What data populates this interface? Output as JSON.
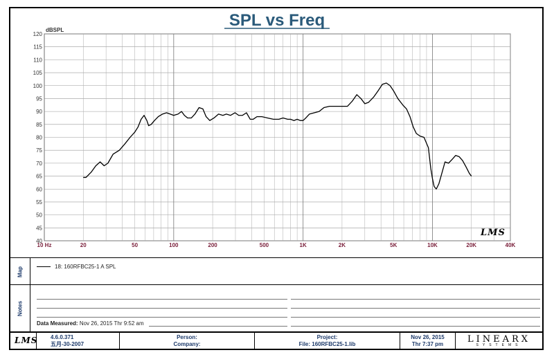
{
  "chart_data": {
    "type": "line",
    "title": "SPL vs Freq",
    "ylabel": "dBSPL",
    "x_scale": "log",
    "xlim": [
      10,
      40000
    ],
    "ylim": [
      40,
      120
    ],
    "grid": true,
    "y_ticks": [
      40,
      45,
      50,
      55,
      60,
      65,
      70,
      75,
      80,
      85,
      90,
      95,
      100,
      105,
      110,
      115,
      120
    ],
    "x_tick_values": [
      10,
      20,
      50,
      100,
      200,
      500,
      1000,
      2000,
      5000,
      10000,
      20000,
      40000
    ],
    "x_tick_labels": [
      "10 Hz",
      "20",
      "50",
      "100",
      "200",
      "500",
      "1K",
      "2K",
      "5K",
      "10K",
      "20K",
      "40K"
    ],
    "watermark": "LMS",
    "series": [
      {
        "name": "18: 160RFBC25-1   A   SPL",
        "color": "#000000",
        "x": [
          20,
          21,
          23,
          25,
          27,
          29,
          31,
          34,
          38,
          42,
          46,
          50,
          53,
          56,
          59,
          62,
          64,
          67,
          71,
          76,
          82,
          88,
          94,
          100,
          108,
          115,
          121,
          128,
          137,
          146,
          157,
          168,
          178,
          190,
          205,
          222,
          240,
          255,
          275,
          298,
          318,
          340,
          365,
          390,
          412,
          440,
          480,
          530,
          590,
          650,
          700,
          760,
          800,
          850,
          900,
          950,
          1000,
          1050,
          1120,
          1220,
          1330,
          1450,
          1600,
          1800,
          2000,
          2200,
          2400,
          2600,
          2800,
          3000,
          3200,
          3500,
          3800,
          4100,
          4400,
          4700,
          5000,
          5400,
          5900,
          6300,
          6700,
          7100,
          7500,
          8000,
          8600,
          9300,
          9700,
          10000,
          10300,
          10700,
          11200,
          11800,
          12500,
          13300,
          14200,
          15100,
          16100,
          17100,
          18200,
          19300,
          20000
        ],
        "y": [
          64.5,
          64.5,
          66.5,
          69,
          70.5,
          69,
          70,
          73.5,
          75,
          77.5,
          80,
          82,
          84,
          87,
          88.5,
          86.5,
          84.5,
          85,
          86.5,
          88,
          89,
          89.5,
          89,
          88.5,
          89,
          90,
          88.5,
          87.5,
          87.5,
          89,
          91.5,
          91,
          88,
          86.5,
          87.5,
          89,
          88.5,
          89,
          88.5,
          89.5,
          88.5,
          88.5,
          89.5,
          87,
          87,
          88,
          88,
          87.5,
          87,
          87,
          87.5,
          87,
          87,
          86.5,
          87,
          86.5,
          86.5,
          87.5,
          89,
          89.5,
          90,
          91.5,
          92,
          92,
          92,
          92,
          94,
          96.5,
          95,
          93,
          93.5,
          95.5,
          98,
          100.5,
          101,
          100,
          98,
          95,
          92.5,
          91,
          88,
          84,
          81.5,
          80.5,
          80,
          76,
          68,
          64,
          61,
          60,
          62,
          66,
          70.5,
          70,
          71.5,
          73,
          72.5,
          71,
          68.5,
          66,
          65
        ]
      }
    ]
  },
  "panels": {
    "map_label": "Map",
    "notes_label": "Notes",
    "date_measured_label": "Data Measured:",
    "date_measured_value": "Nov 26, 2015  Thr  9:52 am"
  },
  "footer": {
    "logo": "LMS",
    "version": "4.6.0.371",
    "version_date": "五月-30-2007",
    "person_label": "Person:",
    "company_label": "Company:",
    "project_label": "Project:",
    "file_label": "File: 160RFBC25-1.lib",
    "date": "Nov 26, 2015",
    "time": "Thr  7:37 pm",
    "brand": "LINEARX",
    "brand_sub": "SYSTEMS"
  }
}
